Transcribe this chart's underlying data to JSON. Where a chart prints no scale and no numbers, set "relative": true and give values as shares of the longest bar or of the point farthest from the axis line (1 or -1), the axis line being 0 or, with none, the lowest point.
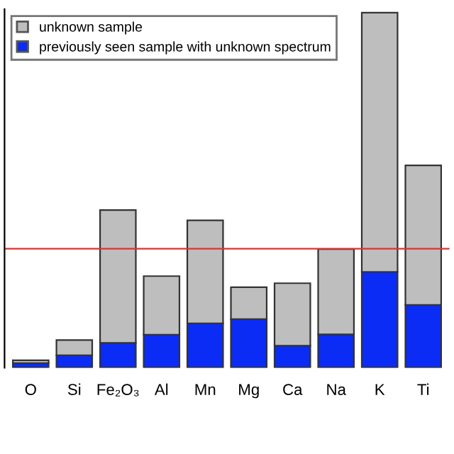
{
  "chart_data": {
    "type": "bar",
    "stacked": true,
    "relative": true,
    "categories": [
      "O",
      "Si",
      "Fe₂O₃",
      "Al",
      "Mn",
      "Mg",
      "Ca",
      "Na",
      "K",
      "Ti"
    ],
    "series": [
      {
        "name": "previously seen sample with unknown spectrum",
        "color": "#0a2cf5",
        "values": [
          0.013,
          0.035,
          0.07,
          0.093,
          0.125,
          0.137,
          0.062,
          0.094,
          0.27,
          0.177
        ]
      },
      {
        "name": "unknown sample",
        "color": "#bebebe",
        "values": [
          0.008,
          0.043,
          0.374,
          0.165,
          0.29,
          0.09,
          0.176,
          0.24,
          0.73,
          0.393
        ]
      }
    ],
    "ref_lines": [
      {
        "axis": "y",
        "value": 0.335,
        "color": "#e03030"
      }
    ],
    "legend": "top left",
    "grid": false
  }
}
